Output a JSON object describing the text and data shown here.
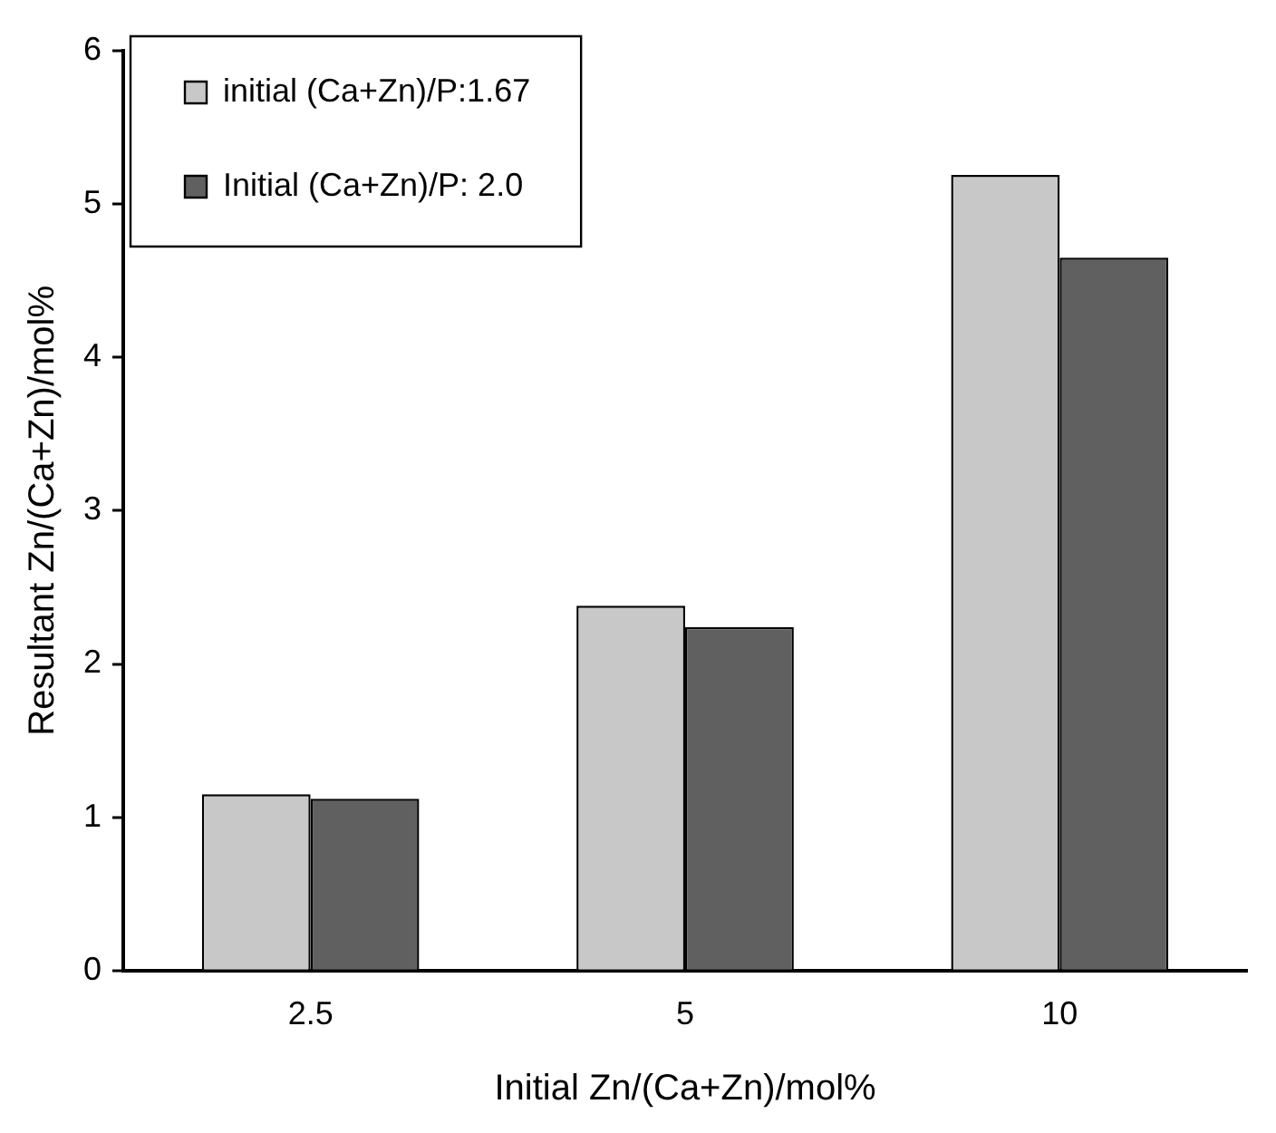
{
  "chart_data": {
    "type": "bar",
    "xlabel": "Initial Zn/(Ca+Zn)/mol%",
    "ylabel": "Resultant Zn/(Ca+Zn)/mol%",
    "categories": [
      "2.5",
      "5",
      "10"
    ],
    "series": [
      {
        "name": "initial (Ca+Zn)/P:1.67",
        "color": "#c8c8c8",
        "values": [
          1.15,
          2.38,
          5.19
        ]
      },
      {
        "name": "Initial (Ca+Zn)/P: 2.0",
        "color": "#606060",
        "values": [
          1.12,
          2.24,
          4.65
        ]
      }
    ],
    "ylim": [
      0,
      6
    ],
    "yticks": [
      0,
      1,
      2,
      3,
      4,
      5,
      6
    ],
    "grid": false,
    "legend": "top left"
  }
}
